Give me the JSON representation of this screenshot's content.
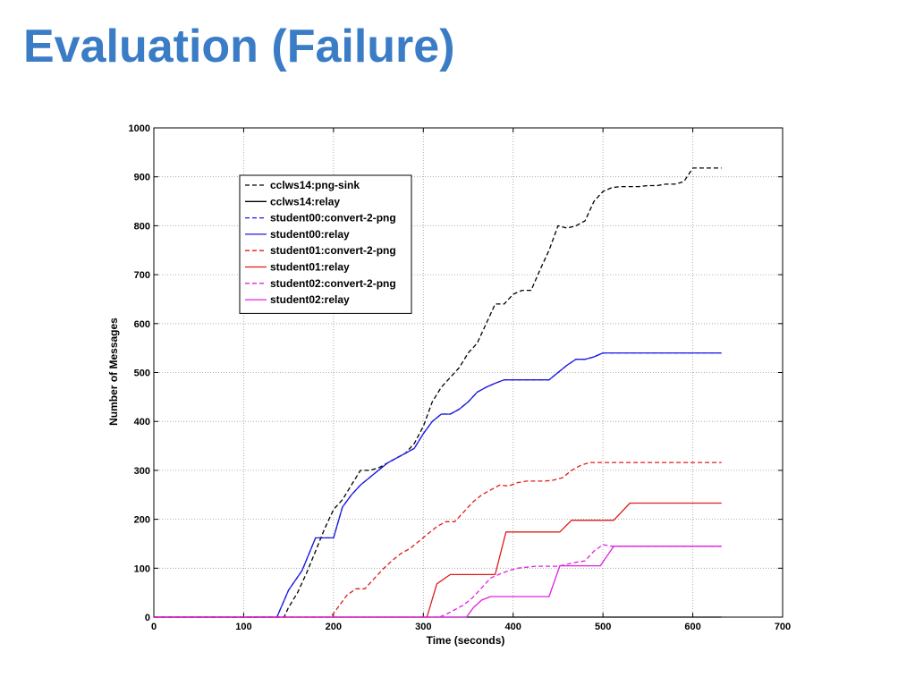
{
  "slide": {
    "title": "Evaluation (Failure)"
  },
  "chart_data": {
    "type": "line",
    "xlabel": "Time (seconds)",
    "ylabel": "Number of Messages",
    "xlim": [
      0,
      700
    ],
    "ylim": [
      0,
      1000
    ],
    "xticks": [
      0,
      100,
      200,
      300,
      400,
      500,
      600,
      700
    ],
    "yticks": [
      0,
      100,
      200,
      300,
      400,
      500,
      600,
      700,
      800,
      900,
      1000
    ],
    "grid": true,
    "legend_position": "top-left",
    "series": [
      {
        "name": "cclws14:png-sink",
        "color": "#000000",
        "style": "dashed",
        "x": [
          0,
          145,
          150,
          160,
          170,
          180,
          190,
          200,
          210,
          220,
          230,
          240,
          250,
          260,
          270,
          280,
          290,
          300,
          310,
          320,
          330,
          340,
          350,
          360,
          370,
          380,
          390,
          400,
          410,
          420,
          430,
          440,
          450,
          460,
          470,
          480,
          490,
          500,
          510,
          520,
          530,
          540,
          550,
          560,
          570,
          580,
          590,
          600,
          610,
          620,
          632
        ],
        "y": [
          0,
          0,
          20,
          50,
          90,
          135,
          180,
          220,
          240,
          270,
          300,
          300,
          305,
          315,
          325,
          335,
          355,
          390,
          440,
          470,
          490,
          510,
          540,
          560,
          600,
          640,
          640,
          660,
          668,
          668,
          710,
          750,
          800,
          795,
          800,
          810,
          850,
          870,
          878,
          880,
          880,
          880,
          882,
          882,
          885,
          885,
          890,
          918,
          918,
          918,
          918
        ]
      },
      {
        "name": "cclws14:relay",
        "color": "#000000",
        "style": "solid",
        "x": [
          0,
          632
        ],
        "y": [
          0,
          0
        ]
      },
      {
        "name": "student00:convert-2-png",
        "color": "#1a1adf",
        "style": "dashed",
        "x": [
          0,
          137,
          150,
          165,
          180,
          190,
          200,
          210,
          220,
          230,
          240,
          250,
          260,
          270,
          280,
          290,
          300,
          310,
          320,
          330,
          340,
          350,
          360,
          370,
          380,
          390,
          400,
          410,
          420,
          430,
          440,
          450,
          460,
          470,
          480,
          490,
          500,
          510,
          520,
          530,
          540,
          550,
          560,
          570,
          580,
          590,
          600,
          610,
          620,
          632
        ],
        "y": [
          0,
          0,
          55,
          95,
          162,
          162,
          162,
          225,
          250,
          270,
          285,
          300,
          315,
          325,
          335,
          345,
          375,
          400,
          415,
          415,
          425,
          440,
          460,
          470,
          478,
          485,
          485,
          485,
          485,
          485,
          485,
          500,
          515,
          527,
          527,
          532,
          540,
          540,
          540,
          540,
          540,
          540,
          540,
          540,
          540,
          540,
          540,
          540,
          540,
          540
        ]
      },
      {
        "name": "student00:relay",
        "color": "#1a1adf",
        "style": "solid",
        "x": [
          0,
          137,
          150,
          165,
          180,
          190,
          200,
          210,
          220,
          230,
          240,
          250,
          260,
          270,
          280,
          290,
          300,
          310,
          320,
          330,
          340,
          350,
          360,
          370,
          380,
          390,
          400,
          410,
          420,
          430,
          440,
          450,
          460,
          470,
          480,
          490,
          500,
          510,
          520,
          530,
          540,
          550,
          560,
          570,
          580,
          590,
          600,
          610,
          620,
          632
        ],
        "y": [
          0,
          0,
          55,
          95,
          162,
          162,
          162,
          225,
          250,
          270,
          285,
          300,
          315,
          325,
          335,
          345,
          375,
          400,
          415,
          415,
          425,
          440,
          460,
          470,
          478,
          485,
          485,
          485,
          485,
          485,
          485,
          500,
          515,
          527,
          527,
          532,
          540,
          540,
          540,
          540,
          540,
          540,
          540,
          540,
          540,
          540,
          540,
          540,
          540,
          540
        ]
      },
      {
        "name": "student01:convert-2-png",
        "color": "#e01b1b",
        "style": "dashed",
        "x": [
          0,
          197,
          205,
          215,
          225,
          235,
          245,
          255,
          265,
          275,
          285,
          295,
          305,
          315,
          325,
          335,
          345,
          355,
          365,
          375,
          385,
          395,
          405,
          415,
          425,
          435,
          445,
          455,
          465,
          475,
          485,
          495,
          505,
          515,
          525,
          535,
          545,
          555,
          565,
          575,
          585,
          595,
          605,
          615,
          632
        ],
        "y": [
          0,
          0,
          20,
          45,
          58,
          58,
          78,
          98,
          115,
          130,
          140,
          155,
          170,
          185,
          195,
          195,
          215,
          235,
          250,
          260,
          270,
          268,
          275,
          278,
          278,
          278,
          280,
          285,
          300,
          310,
          316,
          316,
          316,
          316,
          316,
          316,
          316,
          316,
          316,
          316,
          316,
          316,
          316,
          316,
          316
        ]
      },
      {
        "name": "student01:relay",
        "color": "#e01b1b",
        "style": "solid",
        "x": [
          0,
          304,
          315,
          330,
          345,
          360,
          375,
          380,
          392,
          405,
          420,
          440,
          452,
          465,
          480,
          490,
          500,
          512,
          530,
          560,
          590,
          632
        ],
        "y": [
          0,
          0,
          68,
          87,
          87,
          87,
          87,
          87,
          174,
          174,
          174,
          174,
          174,
          198,
          198,
          198,
          198,
          198,
          233,
          233,
          233,
          233
        ]
      },
      {
        "name": "student02:convert-2-png",
        "color": "#e020e0",
        "style": "dashed",
        "x": [
          0,
          318,
          330,
          345,
          355,
          365,
          375,
          385,
          395,
          405,
          415,
          425,
          440,
          450,
          460,
          470,
          480,
          490,
          500,
          510,
          530,
          560,
          590,
          632
        ],
        "y": [
          0,
          0,
          10,
          25,
          40,
          60,
          80,
          88,
          95,
          100,
          102,
          104,
          104,
          104,
          108,
          112,
          115,
          135,
          148,
          145,
          145,
          145,
          145,
          145
        ]
      },
      {
        "name": "student02:relay",
        "color": "#e020e0",
        "style": "solid",
        "x": [
          0,
          348,
          356,
          365,
          375,
          390,
          405,
          420,
          440,
          452,
          470,
          485,
          497,
          512,
          530,
          560,
          590,
          632
        ],
        "y": [
          0,
          0,
          20,
          35,
          42,
          42,
          42,
          42,
          42,
          105,
          105,
          105,
          105,
          145,
          145,
          145,
          145,
          145
        ]
      }
    ]
  }
}
